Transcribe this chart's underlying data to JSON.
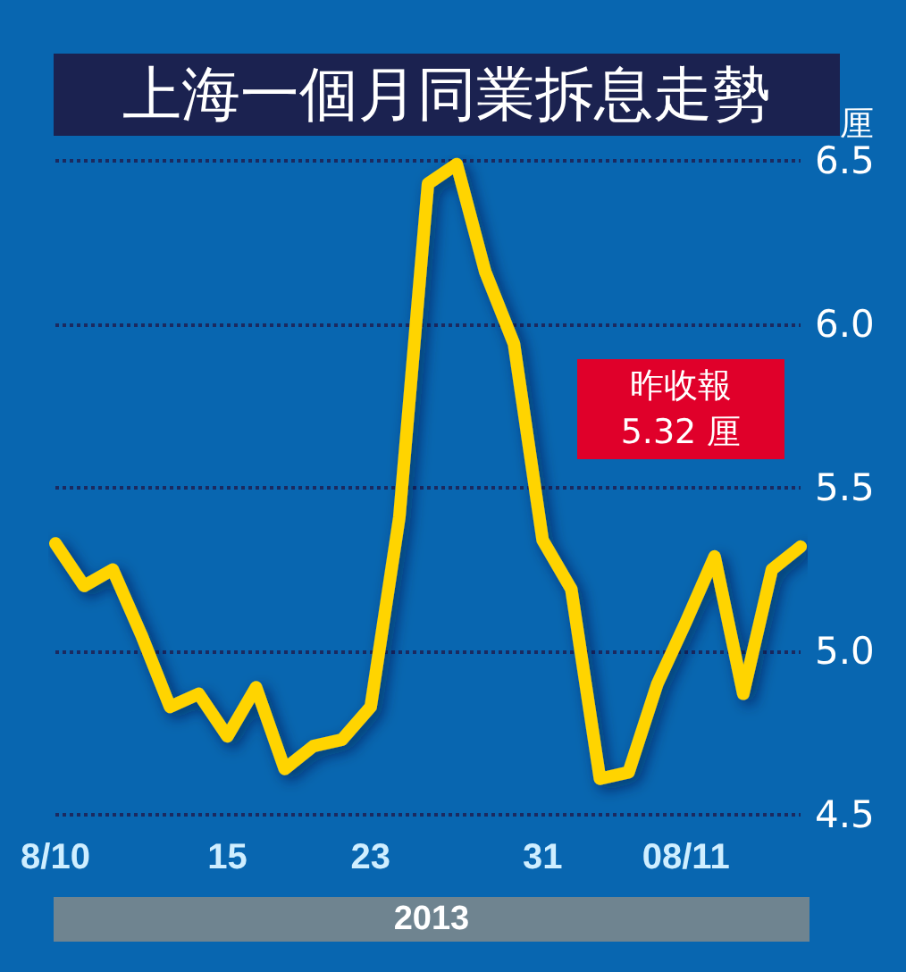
{
  "chart_data": {
    "type": "line",
    "title": "上海一個月同業拆息走勢",
    "ylabel": "厘",
    "xlabel": "2013",
    "categories": [
      "8/10",
      null,
      null,
      null,
      null,
      null,
      "15",
      null,
      null,
      null,
      null,
      "23",
      null,
      null,
      null,
      null,
      null,
      "31",
      null,
      null,
      null,
      null,
      "08/11",
      null,
      null,
      null,
      null
    ],
    "series": [
      {
        "color": "#ffd400",
        "values": [
          5.33,
          5.2,
          5.25,
          5.05,
          4.83,
          4.87,
          4.74,
          4.89,
          4.64,
          4.71,
          4.73,
          4.83,
          5.41,
          6.43,
          6.49,
          6.16,
          5.94,
          5.34,
          5.19,
          4.61,
          4.63,
          4.9,
          5.09,
          5.29,
          4.87,
          5.25,
          5.32
        ]
      }
    ],
    "ylim": [
      4.5,
      6.5
    ],
    "yticks": [
      4.5,
      {
        "value": 5,
        "label": "5.0"
      },
      5.5,
      {
        "value": 6,
        "label": "6.0"
      },
      6.5
    ],
    "grid": "y",
    "annotations": [
      "昨收報\n5.32 厘"
    ]
  }
}
